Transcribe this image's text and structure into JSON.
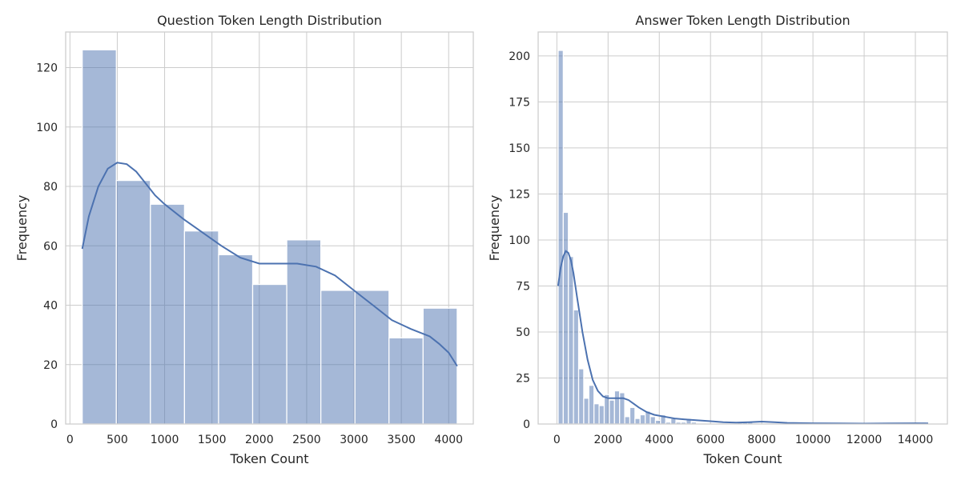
{
  "chart_data": [
    {
      "type": "histogram",
      "title": "Question Token Length Distribution",
      "xlabel": "Token Count",
      "ylabel": "Frequency",
      "xlim": [
        -45,
        4260
      ],
      "ylim": [
        0,
        132
      ],
      "xticks": [
        0,
        500,
        1000,
        1500,
        2000,
        2500,
        3000,
        3500,
        4000
      ],
      "yticks": [
        0,
        20,
        40,
        60,
        80,
        100,
        120
      ],
      "grid": true,
      "bar_color": "#4c72b0",
      "bins": {
        "edges": [
          130,
          490,
          850,
          1210,
          1570,
          1930,
          2290,
          2650,
          3010,
          3370,
          3730,
          4090
        ],
        "counts": [
          126,
          82,
          74,
          65,
          57,
          47,
          62,
          45,
          45,
          29,
          39
        ]
      },
      "kde": {
        "x": [
          130,
          200,
          300,
          400,
          500,
          600,
          700,
          800,
          900,
          1000,
          1200,
          1400,
          1600,
          1800,
          2000,
          2200,
          2400,
          2600,
          2800,
          3000,
          3200,
          3400,
          3600,
          3800,
          3900,
          4000,
          4090
        ],
        "y": [
          59,
          70,
          80,
          86,
          88,
          87.5,
          85,
          81,
          77,
          74,
          69,
          64.5,
          60,
          56,
          54,
          54,
          54,
          53,
          50,
          45,
          40,
          35,
          32,
          29.5,
          27,
          24,
          19.5
        ]
      }
    },
    {
      "type": "histogram",
      "title": "Answer Token Length Distribution",
      "xlabel": "Token Count",
      "ylabel": "Frequency",
      "xlim": [
        -730,
        15250
      ],
      "ylim": [
        0,
        213
      ],
      "xticks": [
        0,
        2000,
        4000,
        6000,
        8000,
        10000,
        12000,
        14000
      ],
      "yticks": [
        0,
        25,
        50,
        75,
        100,
        125,
        150,
        175,
        200
      ],
      "grid": true,
      "bar_color": "#4c72b0",
      "bins": {
        "start": 50,
        "width": 200,
        "counts": [
          203,
          115,
          91,
          62,
          30,
          14,
          21,
          11,
          10,
          16,
          13,
          18,
          17,
          4,
          9,
          3,
          5,
          7,
          4,
          2,
          5,
          1,
          3,
          1,
          1,
          3,
          1,
          0,
          0,
          0,
          0,
          0,
          0,
          0,
          0,
          1,
          1,
          1,
          0,
          0,
          0,
          0,
          0,
          0,
          0,
          0,
          0,
          0,
          0,
          0,
          0,
          0,
          0,
          0,
          0,
          0,
          0,
          0,
          0,
          0,
          0,
          0,
          0,
          0,
          0,
          0,
          0,
          0,
          0,
          0,
          0,
          1
        ]
      },
      "kde": {
        "x": [
          50,
          150,
          250,
          350,
          450,
          550,
          650,
          800,
          1000,
          1200,
          1400,
          1600,
          1800,
          2000,
          2200,
          2400,
          2600,
          2800,
          3000,
          3200,
          3500,
          3800,
          4200,
          4600,
          5000,
          5500,
          6000,
          6500,
          7000,
          7500,
          8000,
          8500,
          9000,
          10000,
          11000,
          12000,
          13000,
          14000,
          14500
        ],
        "y": [
          75,
          85,
          91,
          94,
          93,
          89,
          82,
          68,
          50,
          35,
          24,
          18,
          15,
          14,
          14,
          14,
          14,
          13,
          11,
          9,
          6.5,
          5,
          4,
          3,
          2.5,
          2,
          1.5,
          1,
          0.8,
          1,
          1.3,
          1,
          0.6,
          0.4,
          0.3,
          0.2,
          0.3,
          0.4,
          0.3
        ]
      }
    }
  ]
}
